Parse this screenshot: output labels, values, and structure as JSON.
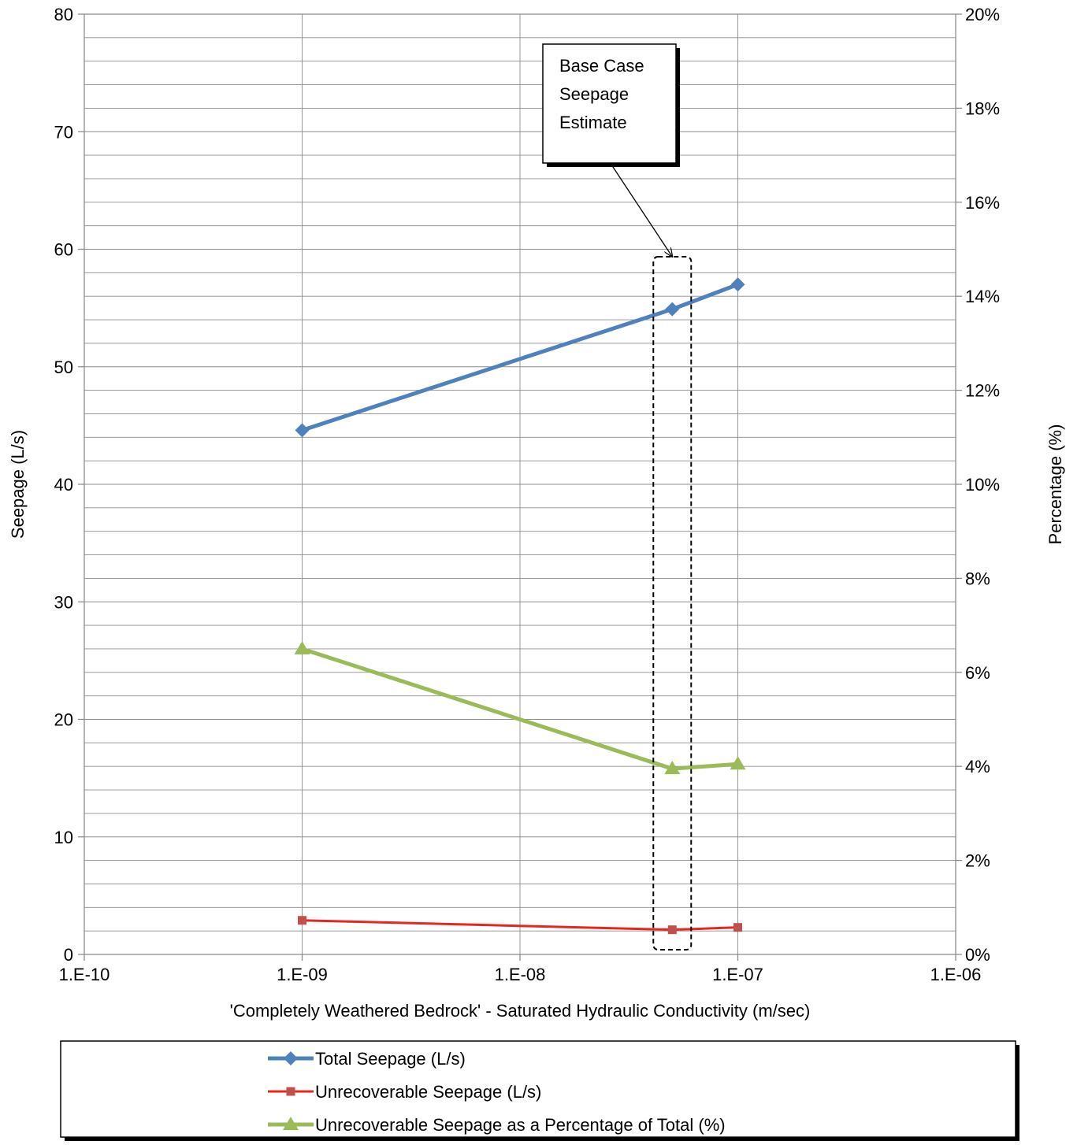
{
  "chart_data": {
    "type": "line",
    "title": "",
    "xlabel": "'Completely Weathered Bedrock' - Saturated Hydraulic Conductivity (m/sec)",
    "ylabel": "Seepage (L/s)",
    "y2label": "Percentage (%)",
    "x_scale": "log",
    "xlim": [
      1e-10,
      1e-06
    ],
    "ylim": [
      0,
      80
    ],
    "y2lim": [
      0,
      20
    ],
    "x_tick_values": [
      1e-10,
      1e-09,
      1e-08,
      1e-07,
      1e-06
    ],
    "x_tick_labels": [
      "1.E-10",
      "1.E-09",
      "1.E-08",
      "1.E-07",
      "1.E-06"
    ],
    "y_tick_values": [
      0,
      10,
      20,
      30,
      40,
      50,
      60,
      70,
      80
    ],
    "y_tick_labels": [
      "0",
      "10",
      "20",
      "30",
      "40",
      "50",
      "60",
      "70",
      "80"
    ],
    "y2_tick_values": [
      0,
      2,
      4,
      6,
      8,
      10,
      12,
      14,
      16,
      18,
      20
    ],
    "y2_tick_labels": [
      "0%",
      "2%",
      "4%",
      "6%",
      "8%",
      "10%",
      "12%",
      "14%",
      "16%",
      "18%",
      "20%"
    ],
    "grid": true,
    "legend_position": "bottom",
    "series": [
      {
        "name": "Total Seepage (L/s)",
        "axis": "left",
        "color": "#4f81bd",
        "marker": "diamond",
        "x": [
          1e-09,
          5e-08,
          1e-07
        ],
        "y": [
          44.6,
          54.9,
          57.0
        ]
      },
      {
        "name": "Unrecoverable Seepage (L/s)",
        "axis": "left",
        "color": "#e8261e",
        "marker_color": "#c0504d",
        "marker": "square",
        "x": [
          1e-09,
          5e-08,
          1e-07
        ],
        "y": [
          2.9,
          2.1,
          2.3
        ]
      },
      {
        "name": "Unrecoverable Seepage as a Percentage of Total (%)",
        "axis": "right",
        "color": "#9bbb59",
        "marker": "triangle",
        "x": [
          1e-09,
          5e-08,
          1e-07
        ],
        "y": [
          6.5,
          3.95,
          4.05
        ]
      }
    ],
    "annotations": [
      {
        "text_lines": [
          "Base Case",
          "Seepage",
          "Estimate"
        ],
        "target_x": 5e-08
      }
    ]
  }
}
